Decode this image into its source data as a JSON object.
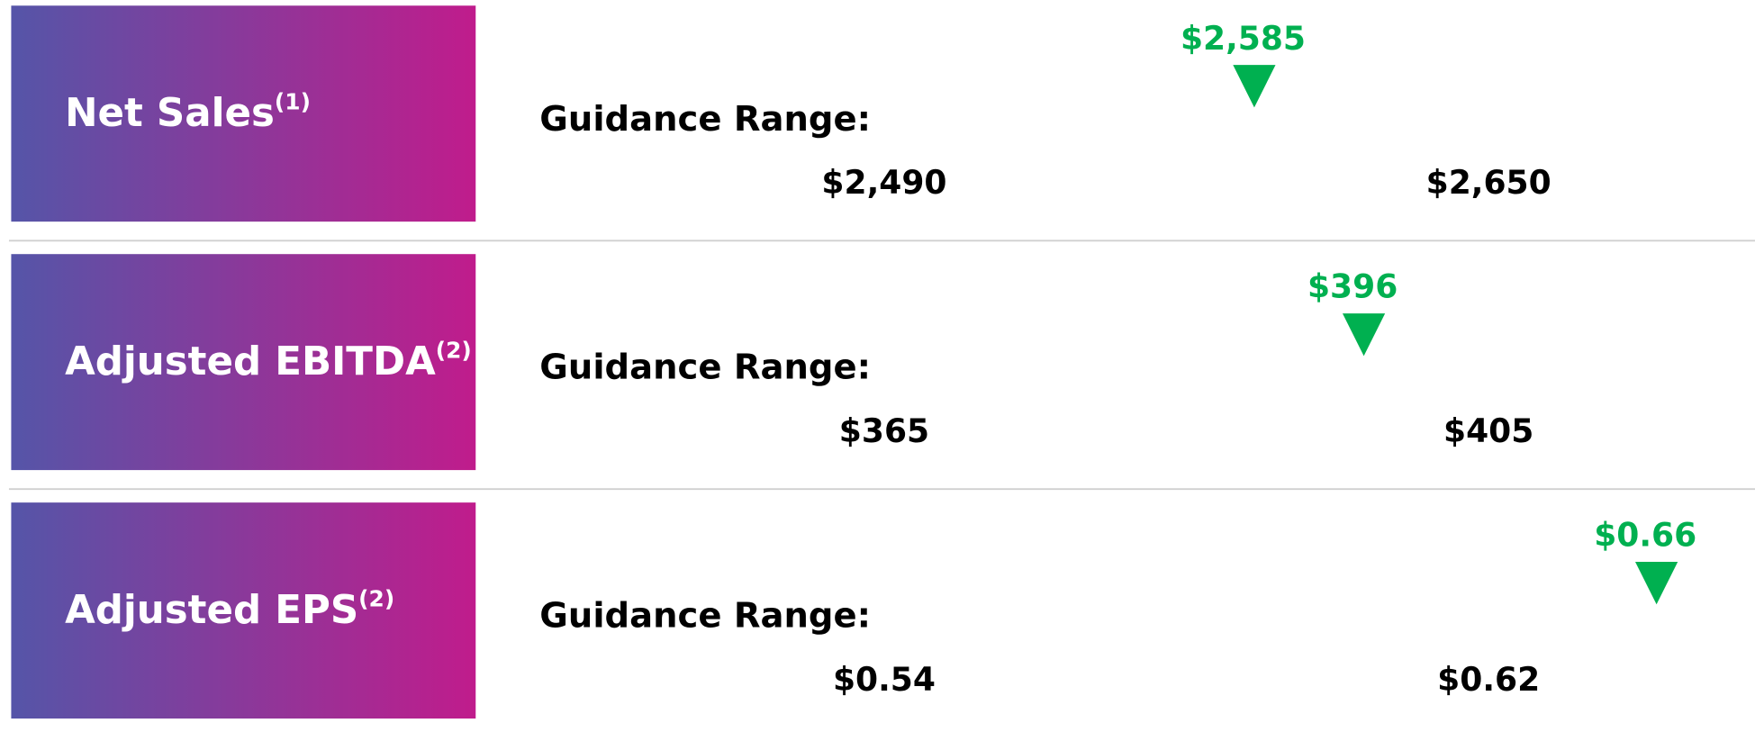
{
  "chart_data": [
    {
      "type": "range",
      "title": "Net Sales",
      "title_note": "(1)",
      "axis_label": "Guidance Range:",
      "xlim": [
        2490,
        2650
      ],
      "xticks": [
        {
          "value": 2490,
          "label": "$2,490"
        },
        {
          "value": 2650,
          "label": "$2,650"
        }
      ],
      "value": 2585,
      "value_label": "$2,585",
      "color": "#00b050"
    },
    {
      "type": "range",
      "title": "Adjusted EBITDA",
      "title_note": "(2)",
      "axis_label": "Guidance Range:",
      "xlim": [
        365,
        405
      ],
      "xticks": [
        {
          "value": 365,
          "label": "$365"
        },
        {
          "value": 405,
          "label": "$405"
        }
      ],
      "value": 396,
      "value_label": "$396",
      "color": "#00b050"
    },
    {
      "type": "range",
      "title": "Adjusted EPS",
      "title_note": "(2)",
      "axis_label": "Guidance Range:",
      "xlim": [
        0.54,
        0.62
      ],
      "xticks": [
        {
          "value": 0.54,
          "label": "$0.54"
        },
        {
          "value": 0.62,
          "label": "$0.62"
        }
      ],
      "value": 0.66,
      "value_label": "$0.66",
      "color": "#00b050"
    }
  ]
}
